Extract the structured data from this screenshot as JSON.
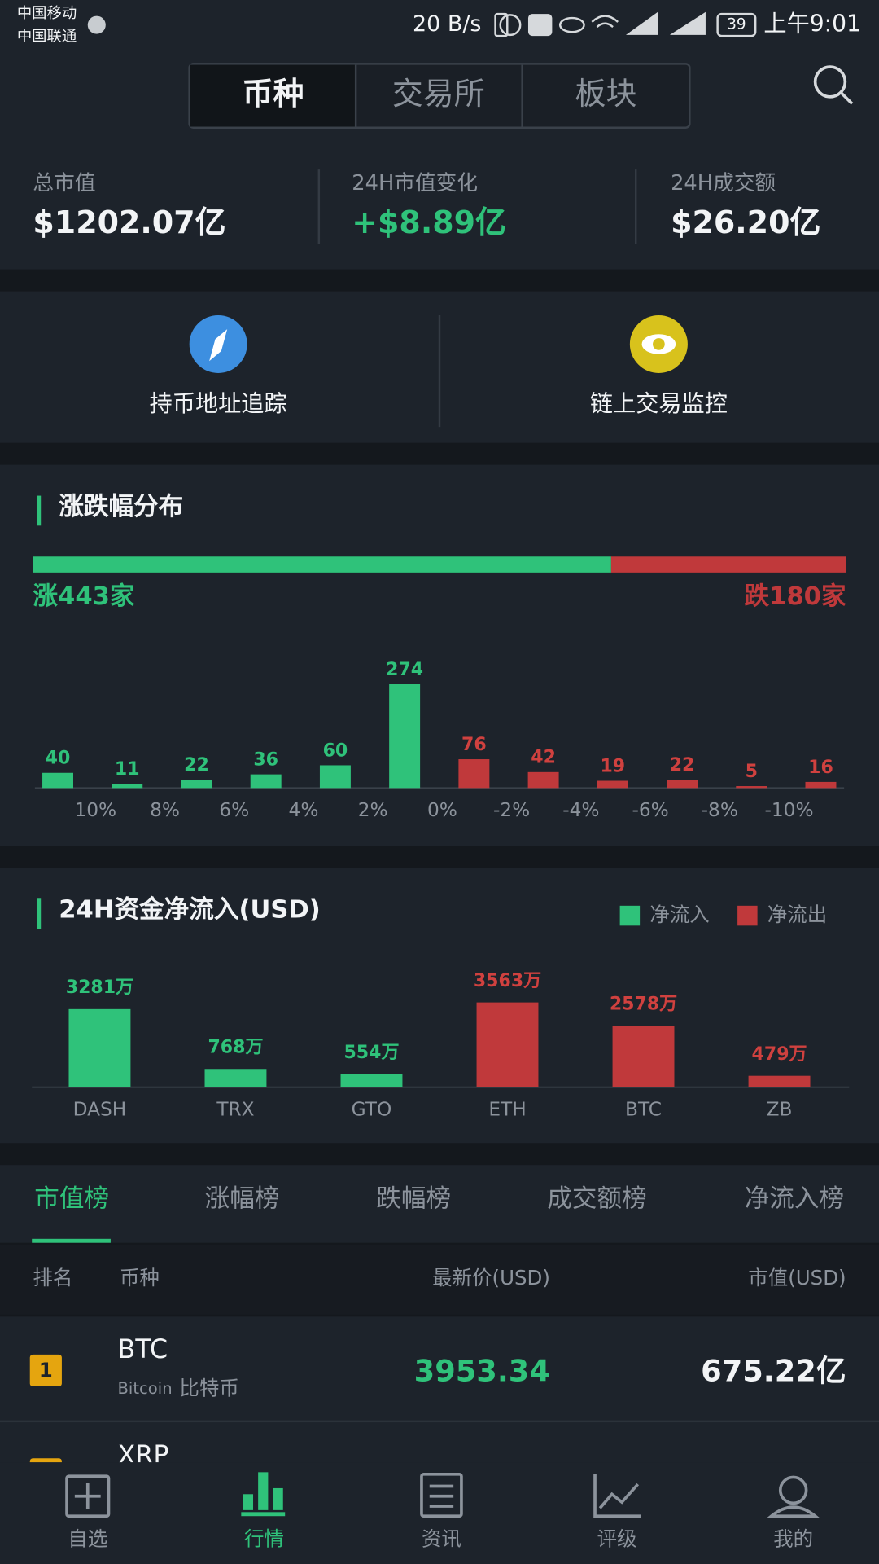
{
  "status_bar": {
    "carrier_1": "中国移动",
    "carrier_2": "中国联通",
    "speed": "20 B/s",
    "battery": "39",
    "time": "上午9:01"
  },
  "tabs": [
    "币种",
    "交易所",
    "板块"
  ],
  "stats": [
    {
      "label": "总市值",
      "value": "$1202.07亿"
    },
    {
      "label": "24H市值变化",
      "value": "+$8.89亿"
    },
    {
      "label": "24H成交额",
      "value": "$26.20亿"
    }
  ],
  "tools": [
    "持币地址追踪",
    "链上交易监控"
  ],
  "distribution": {
    "type": "bar",
    "title": "涨跌幅分布",
    "up_count": 443,
    "up_label": "涨443家",
    "down_count": 180,
    "down_label": "跌180家",
    "edge_labels": [
      "10%",
      "8%",
      "6%",
      "4%",
      "2%",
      "0%",
      "-2%",
      "-4%",
      "-6%",
      "-8%",
      "-10%"
    ],
    "series": [
      {
        "color": "#2fc27a",
        "values": [
          40,
          11,
          22,
          36,
          60,
          274,
          null,
          null,
          null,
          null,
          null,
          null
        ]
      },
      {
        "color": "#c0393b",
        "values": [
          null,
          null,
          null,
          null,
          null,
          null,
          76,
          42,
          19,
          22,
          5,
          16
        ]
      }
    ]
  },
  "flow": {
    "type": "bar",
    "title": "24H资金净流入(USD)",
    "categories": [
      "DASH",
      "TRX",
      "GTO",
      "ETH",
      "BTC",
      "ZB"
    ],
    "series": [
      {
        "name": "净流入",
        "color": "#2fc27a",
        "values": [
          3281,
          768,
          554,
          null,
          null,
          null
        ],
        "value_labels": [
          "3281万",
          "768万",
          "554万",
          null,
          null,
          null
        ]
      },
      {
        "name": "净流出",
        "color": "#c0393b",
        "values": [
          null,
          null,
          null,
          3563,
          2578,
          479
        ],
        "value_labels": [
          null,
          null,
          null,
          "3563万",
          "2578万",
          "479万"
        ]
      }
    ]
  },
  "rank_tabs": [
    "市值榜",
    "涨幅榜",
    "跌幅榜",
    "成交额榜",
    "净流入榜"
  ],
  "table": {
    "columns": [
      "排名",
      "币种",
      "最新价(USD)",
      "市值(USD)"
    ],
    "rows": [
      {
        "rank": "1",
        "symbol": "BTC",
        "name_en": "Bitcoin",
        "name_cn": "比特币",
        "price": "3953.34",
        "market_cap": "675.22亿"
      },
      {
        "symbol": "XRP"
      }
    ]
  },
  "nav": [
    "自选",
    "行情",
    "资讯",
    "评级",
    "我的"
  ]
}
